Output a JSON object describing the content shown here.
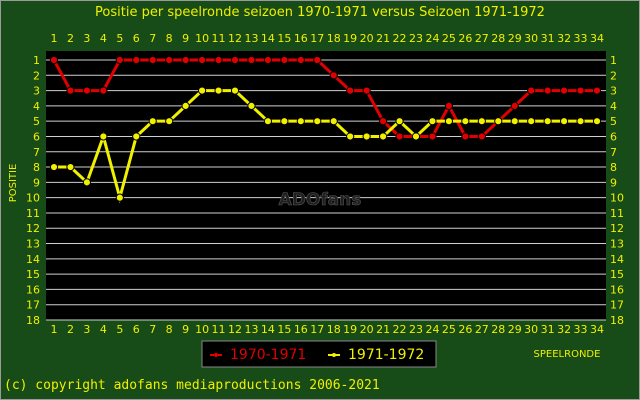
{
  "chart_data": {
    "type": "line",
    "title": "Positie per speelronde seizoen 1970-1971 versus Seizoen 1971-1972",
    "xlabel": "SPEELRONDE",
    "ylabel": "POSITIE",
    "x": [
      1,
      2,
      3,
      4,
      5,
      6,
      7,
      8,
      9,
      10,
      11,
      12,
      13,
      14,
      15,
      16,
      17,
      18,
      19,
      20,
      21,
      22,
      23,
      24,
      25,
      26,
      27,
      28,
      29,
      30,
      31,
      32,
      33,
      34
    ],
    "xlim": [
      1,
      34
    ],
    "ylim": [
      1,
      18
    ],
    "y_inverted": true,
    "y_ticks": [
      1,
      2,
      3,
      4,
      5,
      6,
      7,
      8,
      9,
      10,
      11,
      12,
      13,
      14,
      15,
      16,
      17,
      18
    ],
    "grid": true,
    "legend_position": "bottom-center",
    "series": [
      {
        "name": "1970-1971",
        "color": "#e00000",
        "values": [
          1,
          3,
          3,
          3,
          1,
          1,
          1,
          1,
          1,
          1,
          1,
          1,
          1,
          1,
          1,
          1,
          1,
          2,
          3,
          3,
          5,
          6,
          6,
          6,
          4,
          6,
          6,
          5,
          4,
          3,
          3,
          3,
          3,
          3
        ]
      },
      {
        "name": "1971-1972",
        "color": "#f0f000",
        "values": [
          8,
          8,
          9,
          6,
          10,
          6,
          5,
          5,
          4,
          3,
          3,
          3,
          4,
          5,
          5,
          5,
          5,
          5,
          6,
          6,
          6,
          5,
          6,
          5,
          5,
          5,
          5,
          5,
          5,
          5,
          5,
          5,
          5,
          5
        ]
      }
    ],
    "watermark": "ADOfans"
  },
  "footer": {
    "copyright": "(c) copyright adofans mediaproductions 2006-2021"
  },
  "colors": {
    "background": "#174b17",
    "plot_area": "#000000",
    "text": "#f0f000",
    "grid": "#cfcfcf"
  }
}
